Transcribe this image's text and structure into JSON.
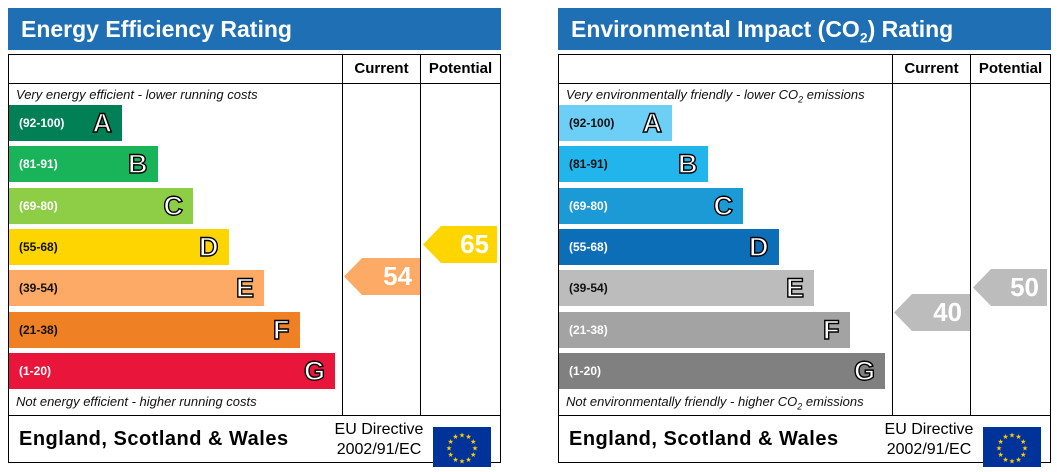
{
  "chart_data": [
    {
      "type": "bar",
      "title": "Energy Efficiency Rating",
      "columns": [
        "Current",
        "Potential"
      ],
      "top_note": "Very energy efficient - lower running costs",
      "bottom_note": "Not energy efficient - higher running costs",
      "bands": [
        {
          "range": "(92-100)",
          "letter": "A",
          "color": "#008054"
        },
        {
          "range": "(81-91)",
          "letter": "B",
          "color": "#19b459"
        },
        {
          "range": "(69-80)",
          "letter": "C",
          "color": "#8dce46"
        },
        {
          "range": "(55-68)",
          "letter": "D",
          "color": "#ffd500"
        },
        {
          "range": "(39-54)",
          "letter": "E",
          "color": "#fcaa65"
        },
        {
          "range": "(21-38)",
          "letter": "F",
          "color": "#ef8023"
        },
        {
          "range": "(1-20)",
          "letter": "G",
          "color": "#e9153b"
        }
      ],
      "current": {
        "value": 54,
        "band": "E",
        "color": "#fcaa65"
      },
      "potential": {
        "value": 65,
        "band": "D",
        "color": "#ffd500"
      },
      "region": "England, Scotland & Wales",
      "directive_line1": "EU Directive",
      "directive_line2": "2002/91/EC"
    },
    {
      "type": "bar",
      "title": "Environmental Impact (CO2) Rating",
      "title_pre": "Environmental Impact (CO",
      "title_sub": "2",
      "title_post": ") Rating",
      "columns": [
        "Current",
        "Potential"
      ],
      "top_note": "Very environmentally friendly - lower CO2 emissions",
      "top_note_pre": "Very environmentally friendly - lower CO",
      "top_note_sub": "2",
      "top_note_post": " emissions",
      "bottom_note": "Not environmentally friendly - higher CO2 emissions",
      "bottom_note_pre": "Not environmentally friendly - higher CO",
      "bottom_note_sub": "2",
      "bottom_note_post": " emissions",
      "bands": [
        {
          "range": "(92-100)",
          "letter": "A",
          "color": "#6ecff6"
        },
        {
          "range": "(81-91)",
          "letter": "B",
          "color": "#22b5ec"
        },
        {
          "range": "(69-80)",
          "letter": "C",
          "color": "#1c9ad6"
        },
        {
          "range": "(55-68)",
          "letter": "D",
          "color": "#0d6eb8"
        },
        {
          "range": "(39-54)",
          "letter": "E",
          "color": "#bcbcbc"
        },
        {
          "range": "(21-38)",
          "letter": "F",
          "color": "#a3a3a3"
        },
        {
          "range": "(1-20)",
          "letter": "G",
          "color": "#808080"
        }
      ],
      "current": {
        "value": 40,
        "band": "E",
        "color": "#bcbcbc"
      },
      "potential": {
        "value": 50,
        "band": "E",
        "color": "#bcbcbc"
      },
      "region": "England, Scotland & Wales",
      "directive_line1": "EU Directive",
      "directive_line2": "2002/91/EC"
    }
  ]
}
